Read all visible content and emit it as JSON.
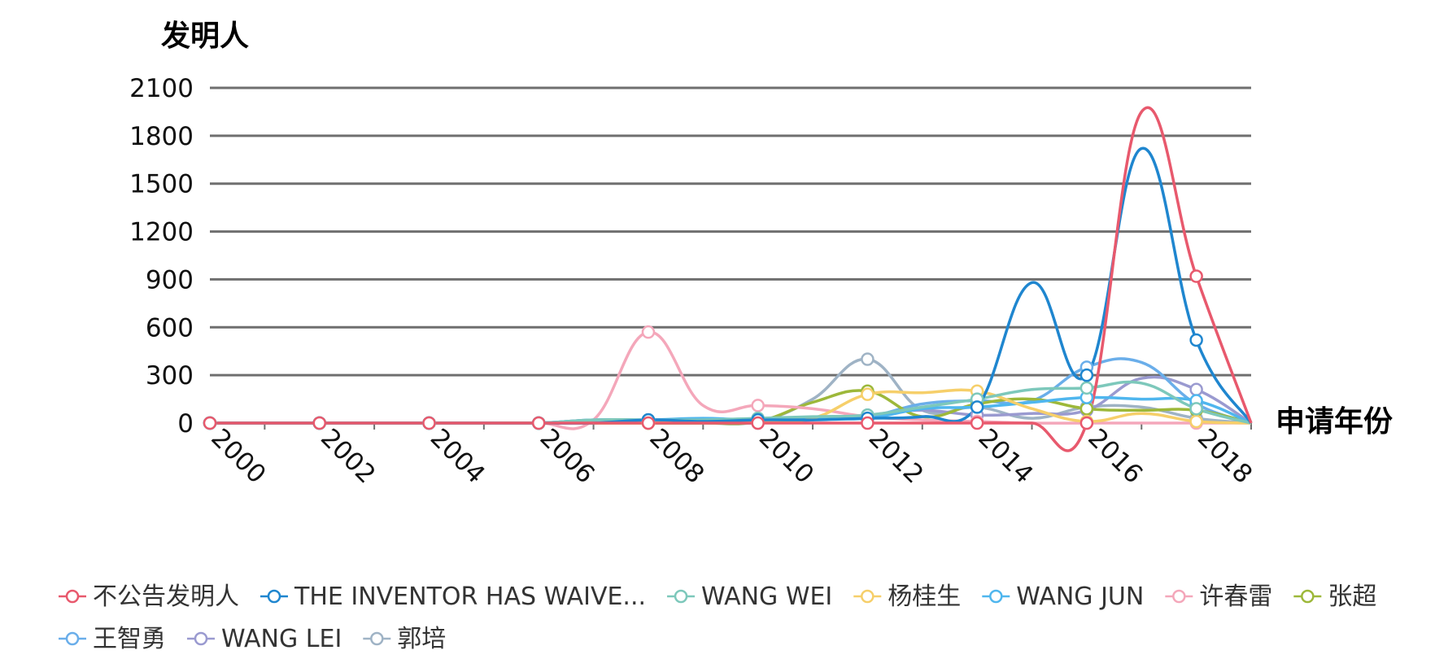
{
  "chart_data": {
    "type": "line",
    "smooth": true,
    "ylabel": "发明人",
    "xlabel": "申请年份",
    "ylim": [
      0,
      2100
    ],
    "yticks": [
      0,
      300,
      600,
      900,
      1200,
      1500,
      1800,
      2100
    ],
    "x": [
      2000,
      2001,
      2002,
      2003,
      2004,
      2005,
      2006,
      2007,
      2008,
      2009,
      2010,
      2011,
      2012,
      2013,
      2014,
      2015,
      2016,
      2017,
      2018,
      2019
    ],
    "xticks": [
      2000,
      2002,
      2004,
      2006,
      2008,
      2010,
      2012,
      2014,
      2016,
      2018
    ],
    "xtick_labels": [
      "2000",
      "2002",
      "2004",
      "2006",
      "2008",
      "2010",
      "2012",
      "2014",
      "2016",
      "2018"
    ],
    "marker_years": [
      2000,
      2002,
      2004,
      2006,
      2008,
      2010,
      2012,
      2014,
      2016,
      2018
    ],
    "grid": true,
    "legend_position": "bottom",
    "series": [
      {
        "name": "不公告发明人",
        "color": "#e8596d",
        "values": [
          0,
          0,
          0,
          0,
          0,
          0,
          0,
          0,
          0,
          0,
          0,
          0,
          0,
          0,
          0,
          0,
          0,
          1950,
          920,
          0
        ]
      },
      {
        "name": "THE INVENTOR HAS WAIVE...",
        "color": "#1f86cf",
        "values": [
          0,
          0,
          0,
          0,
          0,
          0,
          0,
          0,
          20,
          10,
          20,
          20,
          30,
          40,
          100,
          880,
          300,
          1720,
          520,
          0
        ]
      },
      {
        "name": "WANG WEI",
        "color": "#7dc8bb",
        "values": [
          0,
          0,
          0,
          0,
          0,
          0,
          0,
          20,
          20,
          20,
          30,
          40,
          50,
          100,
          150,
          210,
          220,
          250,
          90,
          0
        ]
      },
      {
        "name": "杨桂生",
        "color": "#f6cf6a",
        "values": [
          0,
          0,
          0,
          0,
          0,
          0,
          0,
          0,
          0,
          10,
          10,
          30,
          180,
          190,
          200,
          90,
          10,
          60,
          10,
          0
        ]
      },
      {
        "name": "WANG JUN",
        "color": "#4fb6ee",
        "values": [
          0,
          0,
          0,
          0,
          0,
          0,
          0,
          20,
          20,
          30,
          20,
          30,
          30,
          90,
          100,
          130,
          160,
          150,
          140,
          0
        ]
      },
      {
        "name": "许春雷",
        "color": "#f4a7ba",
        "values": [
          0,
          0,
          0,
          0,
          0,
          0,
          0,
          20,
          570,
          110,
          110,
          90,
          40,
          20,
          10,
          0,
          0,
          0,
          0,
          0
        ]
      },
      {
        "name": "张超",
        "color": "#9db83a",
        "values": [
          0,
          0,
          0,
          0,
          0,
          0,
          0,
          0,
          0,
          0,
          10,
          130,
          200,
          40,
          120,
          150,
          90,
          80,
          80,
          0
        ]
      },
      {
        "name": "王智勇",
        "color": "#6aaeea",
        "values": [
          0,
          0,
          0,
          0,
          0,
          0,
          0,
          20,
          20,
          20,
          20,
          30,
          40,
          120,
          140,
          140,
          350,
          380,
          120,
          0
        ]
      },
      {
        "name": "WANG LEI",
        "color": "#9a9ad0",
        "values": [
          0,
          0,
          0,
          0,
          0,
          0,
          0,
          0,
          0,
          0,
          0,
          20,
          50,
          80,
          50,
          60,
          80,
          280,
          210,
          0
        ]
      },
      {
        "name": "郭培",
        "color": "#9fb3c5",
        "values": [
          0,
          0,
          0,
          0,
          0,
          0,
          0,
          0,
          0,
          0,
          10,
          150,
          400,
          80,
          100,
          30,
          100,
          100,
          30,
          0
        ]
      }
    ]
  }
}
